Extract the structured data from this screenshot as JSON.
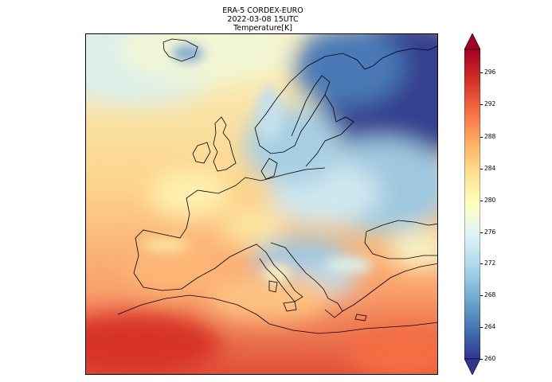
{
  "figure": {
    "title_line1": "ERA-5 CORDEX-EURO",
    "title_line2": "2022-03-08 15UTC",
    "title_line3": "Temperature[K]"
  },
  "colorbar": {
    "ticks": [
      "260",
      "264",
      "268",
      "272",
      "276",
      "280",
      "284",
      "288",
      "292",
      "296"
    ],
    "min": 260,
    "max": 298,
    "extend": "both",
    "colors": [
      "#313695",
      "#4575b4",
      "#74add1",
      "#abd9e9",
      "#e0f3f8",
      "#ffffbf",
      "#fee090",
      "#fdae61",
      "#f46d43",
      "#d73027",
      "#a50026"
    ]
  },
  "map": {
    "region": "Europe (CORDEX-EURO domain)",
    "variable": "Temperature",
    "units": "K"
  }
}
